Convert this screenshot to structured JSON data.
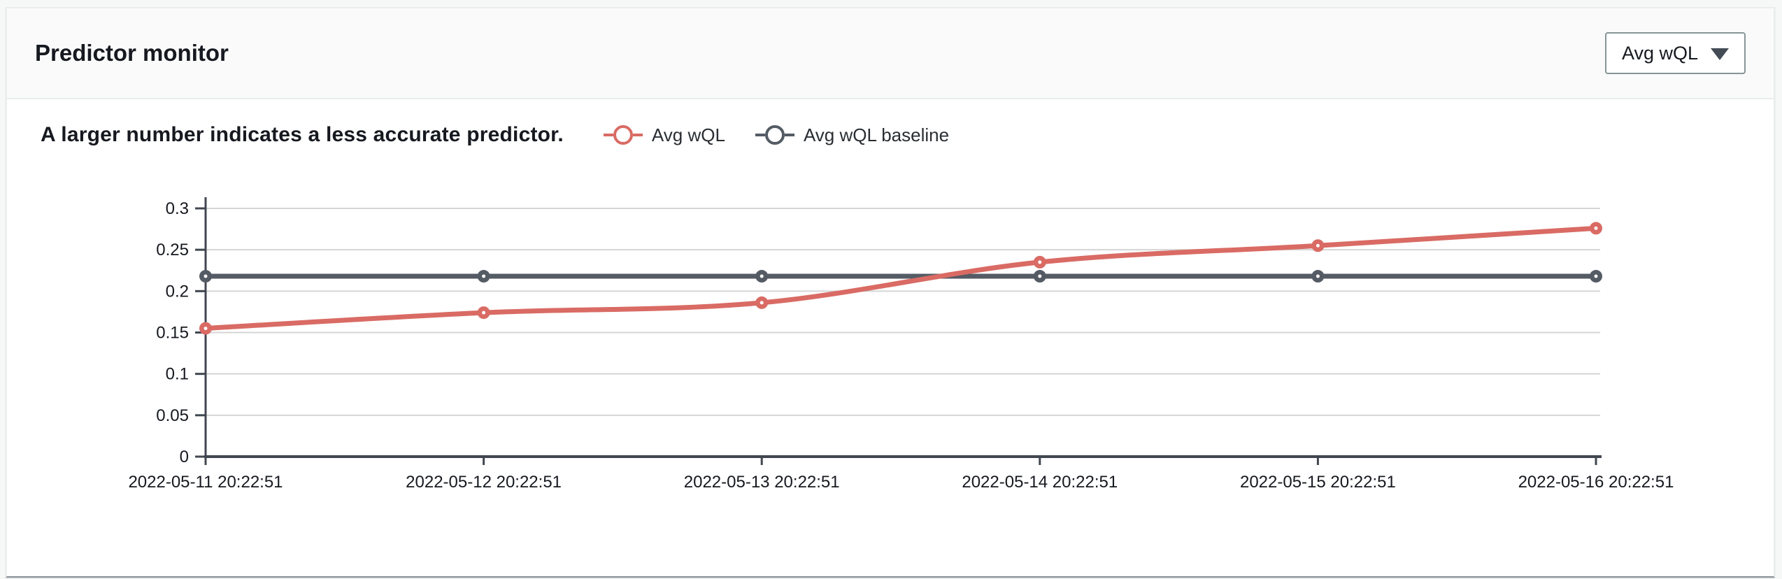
{
  "panel": {
    "title": "Predictor monitor",
    "metric_selector": {
      "value": "Avg wQL",
      "icon": "caret-down-icon"
    }
  },
  "chart_data": {
    "type": "line",
    "title": "A larger number indicates a less accurate predictor.",
    "x": [
      "2022-05-11 20:22:51",
      "2022-05-12 20:22:51",
      "2022-05-13 20:22:51",
      "2022-05-14 20:22:51",
      "2022-05-15 20:22:51",
      "2022-05-16 20:22:51"
    ],
    "series": [
      {
        "name": "Avg wQL",
        "color": "#d96b64",
        "smooth": true,
        "values": [
          0.155,
          0.174,
          0.186,
          0.235,
          0.255,
          0.276
        ]
      },
      {
        "name": "Avg wQL baseline",
        "color": "#545b64",
        "smooth": false,
        "values": [
          0.218,
          0.218,
          0.218,
          0.218,
          0.218,
          0.218
        ]
      }
    ],
    "ylim": [
      0,
      0.3
    ],
    "yticks": [
      0,
      0.05,
      0.1,
      0.15,
      0.2,
      0.25,
      0.3
    ],
    "ytick_labels": [
      "0",
      "0.05",
      "0.1",
      "0.15",
      "0.2",
      "0.25",
      "0.3"
    ],
    "grid": "horizontal",
    "grid_color": "#d5d5d5",
    "axis_color": "#414750",
    "legend_position": "top",
    "xlabel": "",
    "ylabel": ""
  }
}
